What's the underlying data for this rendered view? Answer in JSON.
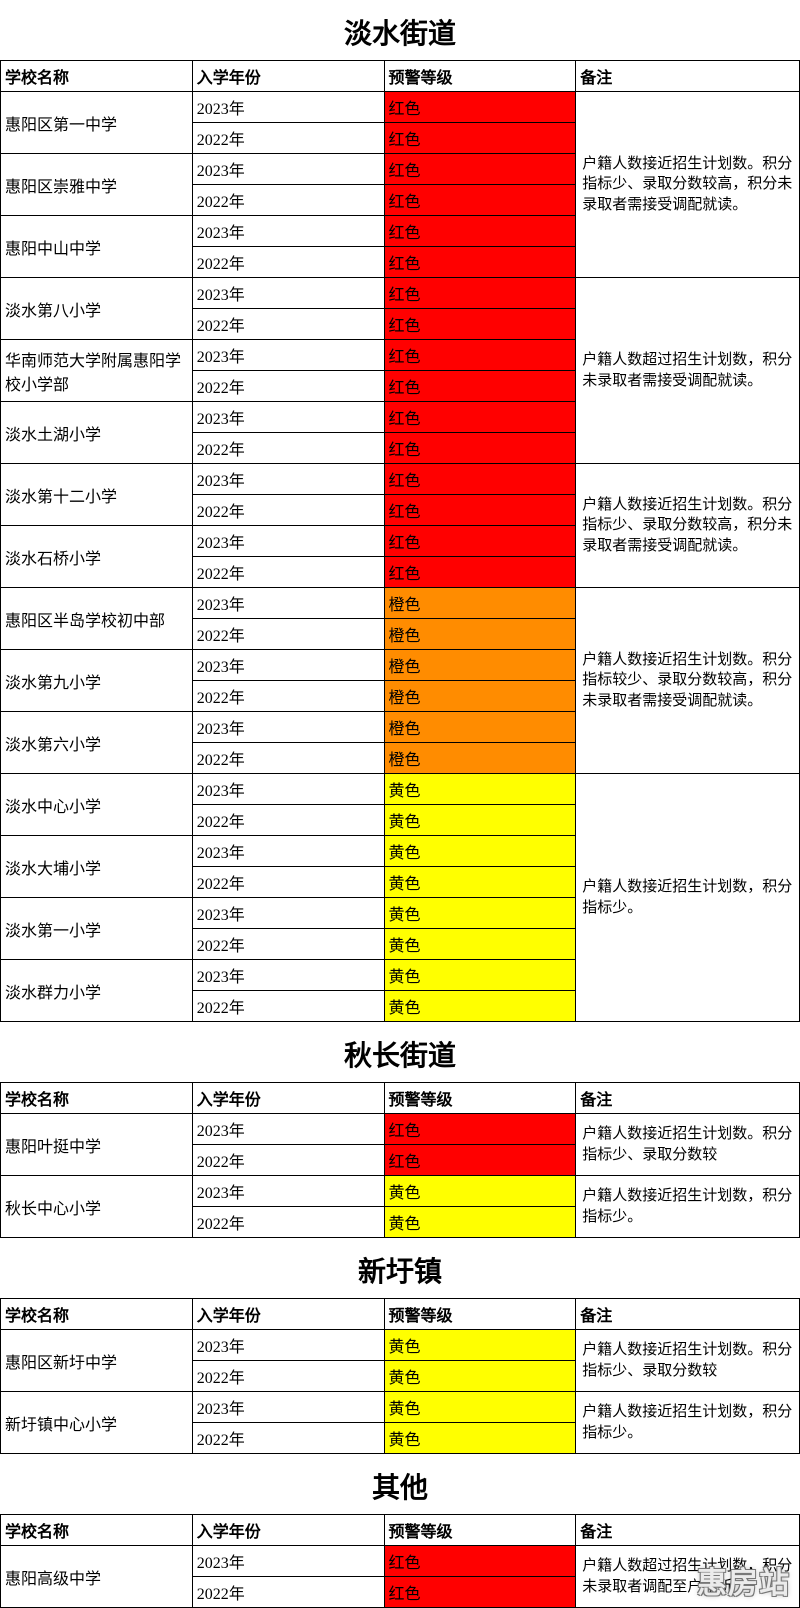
{
  "colors": {
    "red": "#ff0000",
    "orange": "#ff8c00",
    "yellow": "#ffff00",
    "border": "#000000",
    "background": "#ffffff",
    "text": "#000000"
  },
  "font": {
    "family": "SimSun",
    "title_size_pt": 28,
    "cell_size_pt": 16,
    "note_size_pt": 15
  },
  "columns": {
    "school": "学校名称",
    "year": "入学年份",
    "level": "预警等级",
    "note": "备注"
  },
  "level_labels": {
    "red": "红色",
    "orange": "橙色",
    "yellow": "黄色"
  },
  "notes": {
    "A": "户籍人数接近招生计划数。积分指标少、录取分数较高，积分未录取者需接受调配就读。",
    "B": "户籍人数超过招生计划数，积分未录取者需接受调配就读。",
    "C": "户籍人数接近招生计划数。积分指标较少、录取分数较高，积分未录取者需接受调配就读。",
    "D": "户籍人数接近招生计划数，积分指标少。",
    "E": "户籍人数接近招生计划数。积分指标少、录取分数较",
    "F": "户籍人数接近招生计划数，积分指标少。",
    "G": "户籍人数超过招生计划数，积分未录取者调配至户籍所"
  },
  "watermark": "惠房站",
  "sections": [
    {
      "title": "淡水街道",
      "groups": [
        {
          "note_key": "A",
          "schools": [
            {
              "name": "惠阳区第一中学",
              "rows": [
                {
                  "year": "2023年",
                  "level": "red"
                },
                {
                  "year": "2022年",
                  "level": "red"
                }
              ]
            },
            {
              "name": "惠阳区崇雅中学",
              "rows": [
                {
                  "year": "2023年",
                  "level": "red"
                },
                {
                  "year": "2022年",
                  "level": "red"
                }
              ]
            },
            {
              "name": "惠阳中山中学",
              "rows": [
                {
                  "year": "2023年",
                  "level": "red"
                },
                {
                  "year": "2022年",
                  "level": "red"
                }
              ]
            }
          ]
        },
        {
          "note_key": "B",
          "schools": [
            {
              "name": "淡水第八小学",
              "rows": [
                {
                  "year": "2023年",
                  "level": "red"
                },
                {
                  "year": "2022年",
                  "level": "red"
                }
              ]
            },
            {
              "name": "华南师范大学附属惠阳学校小学部",
              "rows": [
                {
                  "year": "2023年",
                  "level": "red"
                },
                {
                  "year": "2022年",
                  "level": "red"
                }
              ]
            },
            {
              "name": "淡水土湖小学",
              "rows": [
                {
                  "year": "2023年",
                  "level": "red"
                },
                {
                  "year": "2022年",
                  "level": "red"
                }
              ]
            }
          ]
        },
        {
          "note_key": "A",
          "schools": [
            {
              "name": "淡水第十二小学",
              "rows": [
                {
                  "year": "2023年",
                  "level": "red"
                },
                {
                  "year": "2022年",
                  "level": "red"
                }
              ]
            },
            {
              "name": "淡水石桥小学",
              "rows": [
                {
                  "year": "2023年",
                  "level": "red"
                },
                {
                  "year": "2022年",
                  "level": "red"
                }
              ]
            }
          ]
        },
        {
          "note_key": "C",
          "schools": [
            {
              "name": "惠阳区半岛学校初中部",
              "rows": [
                {
                  "year": "2023年",
                  "level": "orange"
                },
                {
                  "year": "2022年",
                  "level": "orange"
                }
              ]
            },
            {
              "name": "淡水第九小学",
              "rows": [
                {
                  "year": "2023年",
                  "level": "orange"
                },
                {
                  "year": "2022年",
                  "level": "orange"
                }
              ]
            },
            {
              "name": "淡水第六小学",
              "rows": [
                {
                  "year": "2023年",
                  "level": "orange"
                },
                {
                  "year": "2022年",
                  "level": "orange"
                }
              ]
            }
          ]
        },
        {
          "note_key": "D",
          "schools": [
            {
              "name": "淡水中心小学",
              "rows": [
                {
                  "year": "2023年",
                  "level": "yellow"
                },
                {
                  "year": "2022年",
                  "level": "yellow"
                }
              ]
            },
            {
              "name": "淡水大埔小学",
              "rows": [
                {
                  "year": "2023年",
                  "level": "yellow"
                },
                {
                  "year": "2022年",
                  "level": "yellow"
                }
              ]
            },
            {
              "name": "淡水第一小学",
              "rows": [
                {
                  "year": "2023年",
                  "level": "yellow"
                },
                {
                  "year": "2022年",
                  "level": "yellow"
                }
              ]
            },
            {
              "name": "淡水群力小学",
              "rows": [
                {
                  "year": "2023年",
                  "level": "yellow"
                },
                {
                  "year": "2022年",
                  "level": "yellow"
                }
              ]
            }
          ]
        }
      ]
    },
    {
      "title": "秋长街道",
      "groups": [
        {
          "note_key": "E",
          "schools": [
            {
              "name": "惠阳叶挺中学",
              "rows": [
                {
                  "year": "2023年",
                  "level": "red"
                },
                {
                  "year": "2022年",
                  "level": "red"
                }
              ]
            }
          ]
        },
        {
          "note_key": "F",
          "schools": [
            {
              "name": "秋长中心小学",
              "rows": [
                {
                  "year": "2023年",
                  "level": "yellow"
                },
                {
                  "year": "2022年",
                  "level": "yellow"
                }
              ]
            }
          ]
        }
      ]
    },
    {
      "title": "新圩镇",
      "groups": [
        {
          "note_key": "E",
          "schools": [
            {
              "name": "惠阳区新圩中学",
              "rows": [
                {
                  "year": "2023年",
                  "level": "yellow"
                },
                {
                  "year": "2022年",
                  "level": "yellow"
                }
              ]
            }
          ]
        },
        {
          "note_key": "F",
          "schools": [
            {
              "name": "新圩镇中心小学",
              "rows": [
                {
                  "year": "2023年",
                  "level": "yellow"
                },
                {
                  "year": "2022年",
                  "level": "yellow"
                }
              ]
            }
          ]
        }
      ]
    },
    {
      "title": "其他",
      "groups": [
        {
          "note_key": "G",
          "schools": [
            {
              "name": "惠阳高级中学",
              "rows": [
                {
                  "year": "2023年",
                  "level": "red"
                },
                {
                  "year": "2022年",
                  "level": "red"
                }
              ]
            }
          ]
        }
      ]
    }
  ]
}
